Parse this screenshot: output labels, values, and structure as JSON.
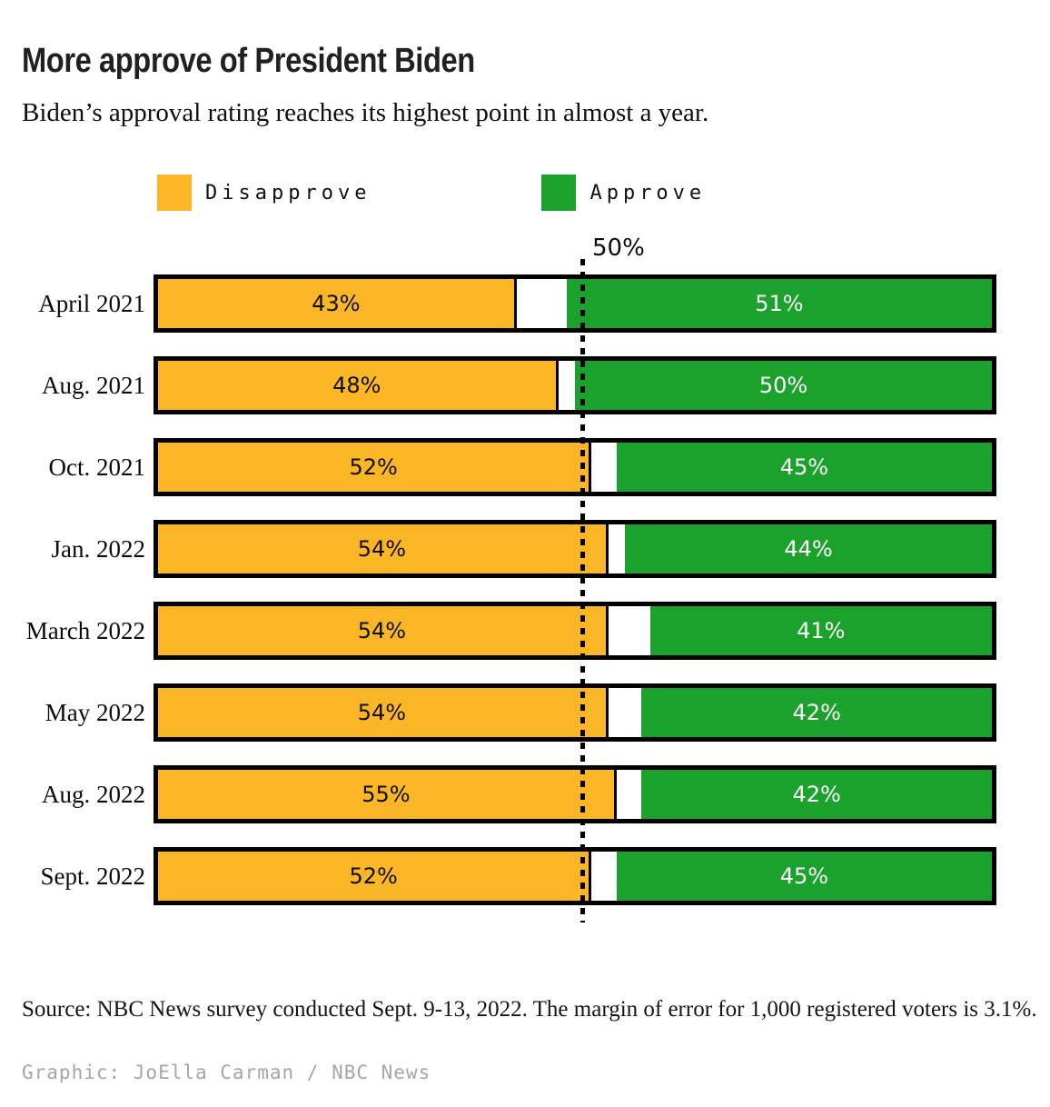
{
  "header": {
    "title": "More approve of President Biden",
    "subtitle": "Biden’s approval rating reaches its highest point in almost a year."
  },
  "legend": {
    "disapprove_label": "Disapprove",
    "approve_label": "Approve"
  },
  "colors": {
    "disapprove_yellow": "#FBB626",
    "approve_green": "#1BA22C",
    "bar_border": "#000000",
    "credit_gray": "#A6A6A6"
  },
  "footer": {
    "source": "Source: NBC News survey conducted Sept. 9-13, 2022. The margin of error for 1,000 registered voters is 3.1%.",
    "credit": "Graphic: JoElla Carman / NBC News"
  },
  "chart_data": {
    "type": "bar",
    "orientation": "horizontal",
    "stacked": true,
    "title": "More approve of President Biden",
    "categories": [
      "April 2021",
      "Aug. 2021",
      "Oct. 2021",
      "Jan. 2022",
      "March 2022",
      "May 2022",
      "Aug. 2022",
      "Sept. 2022"
    ],
    "series": [
      {
        "name": "Disapprove",
        "color": "#FBB626",
        "values": [
          43,
          48,
          52,
          54,
          54,
          54,
          55,
          52
        ]
      },
      {
        "name": "Approve",
        "color": "#1BA22C",
        "values": [
          51,
          50,
          45,
          44,
          41,
          42,
          42,
          45
        ]
      }
    ],
    "xlim": [
      0,
      100
    ],
    "reference_line": 50,
    "reference_line_label": "50%",
    "value_suffix": "%",
    "legend_position": "top",
    "grid": false,
    "value_labels": "inside-center"
  }
}
